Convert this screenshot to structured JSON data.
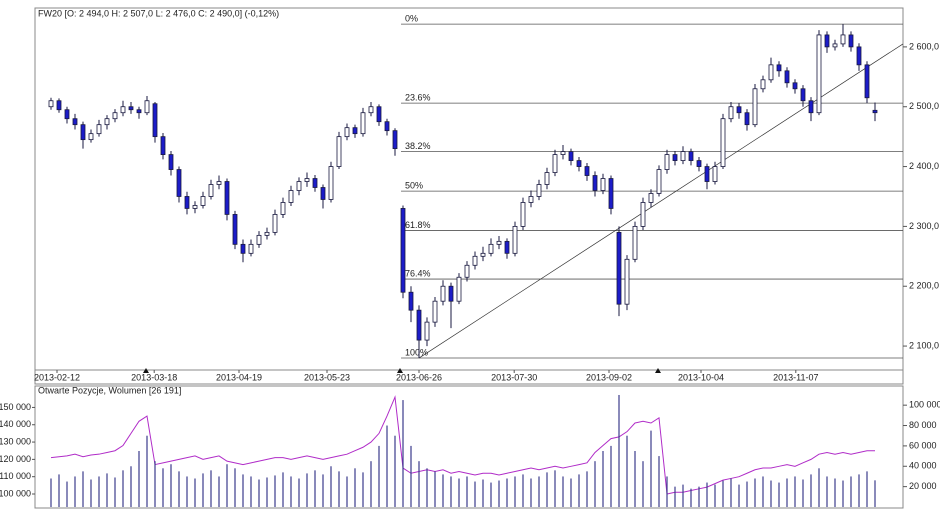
{
  "chart_data": [
    {
      "type": "candlestick",
      "title": "FW20 [O: 2 494,0  H: 2 507,0  L: 2 476,0  C: 2 490,0] (-0,12%)",
      "colors": {
        "up": "#ffffff",
        "down": "#1c1cc8",
        "outline": "#1a1a40"
      },
      "ohlc": [
        [
          2500,
          2515,
          2495,
          2510
        ],
        [
          2510,
          2514,
          2490,
          2495
        ],
        [
          2495,
          2500,
          2472,
          2480
        ],
        [
          2480,
          2488,
          2462,
          2470
        ],
        [
          2470,
          2475,
          2430,
          2445
        ],
        [
          2445,
          2462,
          2440,
          2455
        ],
        [
          2455,
          2478,
          2450,
          2470
        ],
        [
          2470,
          2486,
          2462,
          2480
        ],
        [
          2480,
          2496,
          2474,
          2490
        ],
        [
          2490,
          2510,
          2484,
          2500
        ],
        [
          2500,
          2508,
          2488,
          2495
        ],
        [
          2495,
          2500,
          2480,
          2490
        ],
        [
          2490,
          2518,
          2486,
          2510
        ],
        [
          2505,
          2508,
          2440,
          2450
        ],
        [
          2450,
          2456,
          2412,
          2420
        ],
        [
          2420,
          2426,
          2385,
          2395
        ],
        [
          2395,
          2400,
          2340,
          2350
        ],
        [
          2350,
          2358,
          2320,
          2330
        ],
        [
          2330,
          2342,
          2322,
          2335
        ],
        [
          2335,
          2358,
          2330,
          2350
        ],
        [
          2350,
          2378,
          2345,
          2370
        ],
        [
          2370,
          2385,
          2362,
          2375
        ],
        [
          2375,
          2380,
          2310,
          2320
        ],
        [
          2320,
          2326,
          2262,
          2270
        ],
        [
          2270,
          2278,
          2240,
          2255
        ],
        [
          2255,
          2278,
          2250,
          2270
        ],
        [
          2270,
          2292,
          2264,
          2285
        ],
        [
          2285,
          2298,
          2278,
          2290
        ],
        [
          2290,
          2328,
          2285,
          2320
        ],
        [
          2320,
          2348,
          2314,
          2340
        ],
        [
          2340,
          2368,
          2334,
          2360
        ],
        [
          2360,
          2382,
          2352,
          2375
        ],
        [
          2375,
          2390,
          2366,
          2380
        ],
        [
          2380,
          2386,
          2358,
          2365
        ],
        [
          2365,
          2370,
          2330,
          2345
        ],
        [
          2345,
          2408,
          2340,
          2400
        ],
        [
          2400,
          2458,
          2396,
          2450
        ],
        [
          2450,
          2472,
          2444,
          2465
        ],
        [
          2465,
          2470,
          2448,
          2455
        ],
        [
          2455,
          2498,
          2450,
          2490
        ],
        [
          2490,
          2508,
          2484,
          2500
        ],
        [
          2500,
          2504,
          2468,
          2475
        ],
        [
          2475,
          2480,
          2452,
          2460
        ],
        [
          2460,
          2464,
          2418,
          2430
        ],
        [
          2330,
          2335,
          2180,
          2190
        ],
        [
          2190,
          2200,
          2140,
          2160
        ],
        [
          2160,
          2168,
          2080,
          2110
        ],
        [
          2110,
          2148,
          2100,
          2140
        ],
        [
          2140,
          2182,
          2132,
          2175
        ],
        [
          2175,
          2210,
          2168,
          2200
        ],
        [
          2200,
          2206,
          2130,
          2175
        ],
        [
          2175,
          2222,
          2170,
          2215
        ],
        [
          2215,
          2242,
          2208,
          2235
        ],
        [
          2235,
          2258,
          2228,
          2250
        ],
        [
          2250,
          2266,
          2242,
          2255
        ],
        [
          2255,
          2280,
          2250,
          2270
        ],
        [
          2270,
          2284,
          2262,
          2275
        ],
        [
          2275,
          2280,
          2246,
          2255
        ],
        [
          2255,
          2308,
          2250,
          2300
        ],
        [
          2300,
          2348,
          2294,
          2340
        ],
        [
          2340,
          2360,
          2332,
          2350
        ],
        [
          2350,
          2378,
          2344,
          2370
        ],
        [
          2370,
          2398,
          2362,
          2390
        ],
        [
          2390,
          2428,
          2384,
          2420
        ],
        [
          2420,
          2436,
          2412,
          2425
        ],
        [
          2425,
          2430,
          2402,
          2410
        ],
        [
          2410,
          2416,
          2392,
          2400
        ],
        [
          2400,
          2406,
          2376,
          2385
        ],
        [
          2385,
          2392,
          2350,
          2360
        ],
        [
          2360,
          2388,
          2354,
          2380
        ],
        [
          2380,
          2385,
          2320,
          2330
        ],
        [
          2290,
          2300,
          2150,
          2170
        ],
        [
          2170,
          2252,
          2160,
          2245
        ],
        [
          2245,
          2308,
          2240,
          2300
        ],
        [
          2300,
          2348,
          2294,
          2340
        ],
        [
          2340,
          2362,
          2332,
          2355
        ],
        [
          2355,
          2402,
          2350,
          2395
        ],
        [
          2395,
          2428,
          2388,
          2420
        ],
        [
          2420,
          2426,
          2402,
          2410
        ],
        [
          2410,
          2434,
          2404,
          2425
        ],
        [
          2425,
          2430,
          2402,
          2410
        ],
        [
          2410,
          2416,
          2392,
          2400
        ],
        [
          2400,
          2405,
          2362,
          2375
        ],
        [
          2375,
          2408,
          2370,
          2400
        ],
        [
          2400,
          2488,
          2396,
          2480
        ],
        [
          2480,
          2508,
          2474,
          2500
        ],
        [
          2500,
          2506,
          2480,
          2490
        ],
        [
          2490,
          2496,
          2460,
          2470
        ],
        [
          2470,
          2538,
          2466,
          2530
        ],
        [
          2530,
          2552,
          2524,
          2545
        ],
        [
          2545,
          2582,
          2540,
          2570
        ],
        [
          2570,
          2576,
          2550,
          2560
        ],
        [
          2560,
          2566,
          2532,
          2540
        ],
        [
          2540,
          2546,
          2522,
          2530
        ],
        [
          2530,
          2536,
          2500,
          2510
        ],
        [
          2510,
          2516,
          2476,
          2490
        ],
        [
          2490,
          2628,
          2486,
          2620
        ],
        [
          2620,
          2626,
          2590,
          2600
        ],
        [
          2600,
          2612,
          2594,
          2605
        ],
        [
          2605,
          2638,
          2600,
          2620
        ],
        [
          2620,
          2626,
          2592,
          2600
        ],
        [
          2600,
          2606,
          2560,
          2570
        ],
        [
          2570,
          2576,
          2506,
          2515
        ],
        [
          2494,
          2507,
          2476,
          2490
        ]
      ],
      "xlim": [
        -2,
        106.5
      ],
      "xticks": [
        {
          "value": 0.75,
          "label": "2013-02-12"
        },
        {
          "value": 12.9,
          "label": "2013-03-18"
        },
        {
          "value": 23.5,
          "label": "2013-04-19"
        },
        {
          "value": 34.5,
          "label": "2013-05-23"
        },
        {
          "value": 46,
          "label": "2013-06-26"
        },
        {
          "value": 57.9,
          "label": "2013-07-30"
        },
        {
          "value": 69.75,
          "label": "2013-09-02"
        },
        {
          "value": 81.25,
          "label": "2013-10-04"
        },
        {
          "value": 93.1,
          "label": "2013-11-07"
        }
      ],
      "ylim": [
        2060,
        2665
      ],
      "yticks": [
        {
          "value": 2100,
          "label": "2 100,0"
        },
        {
          "value": 2200,
          "label": "2 200,0"
        },
        {
          "value": 2300,
          "label": "2 300,0"
        },
        {
          "value": 2400,
          "label": "2 400,0"
        },
        {
          "value": 2500,
          "label": "2 500,0"
        },
        {
          "value": 2600,
          "label": "2 600,0"
        }
      ],
      "fib_levels": [
        {
          "label": "0%",
          "value": 2638
        },
        {
          "label": "23.6%",
          "value": 2506
        },
        {
          "label": "38.2%",
          "value": 2425
        },
        {
          "label": "50%",
          "value": 2359
        },
        {
          "label": "61.8%",
          "value": 2293
        },
        {
          "label": "76.4%",
          "value": 2212
        },
        {
          "label": "100%",
          "value": 2080
        }
      ],
      "trendline": {
        "x": [
          46,
          106.5
        ],
        "y": [
          2080,
          2605
        ]
      }
    },
    {
      "type": "bar-line",
      "title": "Otwarte Pozycje, Wolumen [26 191]",
      "xlim": [
        -2,
        106.5
      ],
      "ylim": [
        92500,
        156600
      ],
      "yticks": [
        {
          "value": 100000,
          "label": "100 000"
        },
        {
          "value": 110000,
          "label": "110 000"
        },
        {
          "value": 120000,
          "label": "120 000"
        },
        {
          "value": 130000,
          "label": "130 000"
        },
        {
          "value": 140000,
          "label": "140 000"
        },
        {
          "value": 150000,
          "label": "150 000"
        }
      ],
      "y2lim": [
        0,
        109000
      ],
      "y2ticks": [
        {
          "value": 20000,
          "label": "20 000"
        },
        {
          "value": 40000,
          "label": "40 000"
        },
        {
          "value": 60000,
          "label": "60 000"
        },
        {
          "value": 80000,
          "label": "80 000"
        },
        {
          "value": 100000,
          "label": "100 000"
        }
      ],
      "series": [
        {
          "color": "#b02cc8",
          "values": [
            121000,
            121500,
            122000,
            123000,
            121500,
            122500,
            123000,
            124000,
            125000,
            128000,
            135000,
            142000,
            145000,
            117000,
            118000,
            119000,
            120000,
            121000,
            122000,
            120000,
            121000,
            122000,
            119000,
            118000,
            117000,
            118000,
            119000,
            120000,
            121000,
            121000,
            120000,
            121000,
            122000,
            121000,
            120000,
            121000,
            122000,
            123000,
            125000,
            127000,
            130000,
            135000,
            145000,
            156000,
            115000,
            112000,
            113000,
            114000,
            113000,
            114000,
            112000,
            113000,
            112000,
            111000,
            112000,
            112000,
            111000,
            112000,
            113000,
            114000,
            115000,
            114000,
            115000,
            116000,
            115000,
            116000,
            117000,
            118000,
            124000,
            128000,
            132000,
            133000,
            136000,
            141000,
            142000,
            141000,
            144000,
            100000,
            101000,
            101000,
            102000,
            103000,
            104000,
            106000,
            108000,
            109000,
            110000,
            112000,
            114000,
            115000,
            115000,
            116000,
            117000,
            116000,
            118000,
            120000,
            123000,
            124000,
            123000,
            124000,
            123000,
            124000,
            125000,
            125000
          ]
        },
        {
          "color": "#3b3b8c",
          "axis": "y2",
          "values": [
            28000,
            32000,
            25000,
            30000,
            35000,
            27000,
            30000,
            33000,
            29000,
            36000,
            40000,
            55000,
            70000,
            45000,
            38000,
            42000,
            35000,
            30000,
            28000,
            33000,
            36000,
            30000,
            42000,
            38000,
            32000,
            30000,
            27000,
            29000,
            31000,
            34000,
            30000,
            28000,
            33000,
            36000,
            32000,
            40000,
            35000,
            30000,
            38000,
            34000,
            45000,
            60000,
            80000,
            70000,
            105000,
            60000,
            45000,
            38000,
            35000,
            32000,
            30000,
            28000,
            30000,
            25000,
            27000,
            24000,
            26000,
            28000,
            30000,
            32000,
            28000,
            30000,
            34000,
            36000,
            30000,
            28000,
            32000,
            35000,
            45000,
            55000,
            60000,
            110000,
            70000,
            55000,
            45000,
            75000,
            50000,
            30000,
            20000,
            22000,
            18000,
            20000,
            24000,
            22000,
            26000,
            28000,
            22000,
            25000,
            28000,
            30000,
            26000,
            24000,
            28000,
            30000,
            27000,
            32000,
            38000,
            30000,
            28000,
            26000,
            30000,
            32000,
            35000,
            26191
          ]
        }
      ]
    }
  ]
}
